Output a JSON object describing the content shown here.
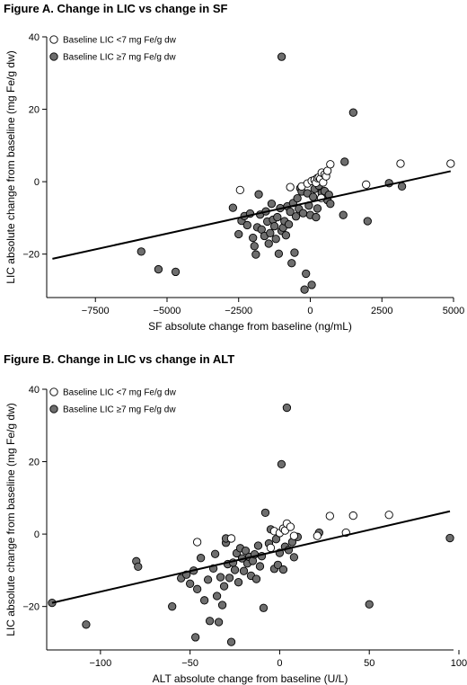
{
  "legend": {
    "open_label": "Baseline LIC <7 mg Fe/g dw",
    "filled_label": "Baseline LIC ≥7 mg Fe/g dw"
  },
  "colors": {
    "open_fill": "#ffffff",
    "filled_fill": "#6e6e6e",
    "stroke": "#000000",
    "line": "#000000"
  },
  "chart_data": [
    {
      "type": "scatter",
      "title": "Figure A. Change in LIC vs change in SF",
      "xlabel": "SF absolute change from baseline (ng/mL)",
      "ylabel": "LIC absolute change from baseline (mg Fe/g dw)",
      "xlim": [
        -9200,
        5000
      ],
      "ylim": [
        -32,
        40
      ],
      "xticks": [
        -7500,
        -5000,
        -2500,
        0,
        2500,
        5000
      ],
      "xtick_labels": [
        "−7500",
        "−5000",
        "−2500",
        "0",
        "2500",
        "5000"
      ],
      "yticks": [
        -20,
        0,
        20,
        40
      ],
      "ytick_labels": [
        "−20",
        "0",
        "20",
        "40"
      ],
      "legend_position": "top-left",
      "regression_line": {
        "x": [
          -9000,
          4900
        ],
        "y": [
          -21.3,
          2.9
        ]
      },
      "series": [
        {
          "name": "Baseline LIC <7 mg Fe/g dw",
          "marker": "open",
          "points": [
            [
              -2450,
              -2.3
            ],
            [
              -700,
              -1.5
            ],
            [
              -300,
              -1.3
            ],
            [
              -100,
              -0.5
            ],
            [
              50,
              0.2
            ],
            [
              150,
              0.5
            ],
            [
              200,
              -0.3
            ],
            [
              250,
              1.0
            ],
            [
              300,
              1.2
            ],
            [
              350,
              0.8
            ],
            [
              400,
              2.5
            ],
            [
              450,
              -0.2
            ],
            [
              500,
              2.0
            ],
            [
              550,
              1.5
            ],
            [
              600,
              3.0
            ],
            [
              700,
              4.8
            ],
            [
              1950,
              -0.8
            ],
            [
              3150,
              5.0
            ],
            [
              4900,
              5.0
            ],
            [
              380,
              -4.5
            ]
          ]
        },
        {
          "name": "Baseline LIC ≥7 mg Fe/g dw",
          "marker": "filled",
          "points": [
            [
              -5900,
              -19.3
            ],
            [
              -5300,
              -24.2
            ],
            [
              -4700,
              -24.9
            ],
            [
              -2700,
              -7.2
            ],
            [
              -2500,
              -14.5
            ],
            [
              -2400,
              -10.8
            ],
            [
              -2300,
              -9.5
            ],
            [
              -2200,
              -12.0
            ],
            [
              -2100,
              -8.8
            ],
            [
              -2000,
              -15.5
            ],
            [
              -1950,
              -17.8
            ],
            [
              -1900,
              -20.1
            ],
            [
              -1850,
              -12.6
            ],
            [
              -1800,
              -3.5
            ],
            [
              -1750,
              -9.1
            ],
            [
              -1700,
              -13.2
            ],
            [
              -1600,
              -15.0
            ],
            [
              -1550,
              -8.2
            ],
            [
              -1500,
              -11.0
            ],
            [
              -1450,
              -17.1
            ],
            [
              -1400,
              -14.2
            ],
            [
              -1350,
              -6.1
            ],
            [
              -1300,
              -10.5
            ],
            [
              -1250,
              -12.3
            ],
            [
              -1200,
              -15.8
            ],
            [
              -1150,
              -9.8
            ],
            [
              -1100,
              -19.9
            ],
            [
              -1050,
              -7.3
            ],
            [
              -1000,
              -13.6
            ],
            [
              -1000,
              34.5
            ],
            [
              -950,
              -12.7
            ],
            [
              -900,
              -10.9
            ],
            [
              -850,
              -14.8
            ],
            [
              -800,
              -6.8
            ],
            [
              -750,
              -11.8
            ],
            [
              -700,
              -8.3
            ],
            [
              -650,
              -22.5
            ],
            [
              -600,
              -5.9
            ],
            [
              -550,
              -19.6
            ],
            [
              -500,
              -9.6
            ],
            [
              -450,
              -4.6
            ],
            [
              -400,
              -7.5
            ],
            [
              -350,
              -1.8
            ],
            [
              -300,
              -2.7
            ],
            [
              -250,
              -8.7
            ],
            [
              -200,
              -29.8
            ],
            [
              -150,
              -25.4
            ],
            [
              -100,
              -3.2
            ],
            [
              -50,
              -6.6
            ],
            [
              0,
              -9.2
            ],
            [
              50,
              -28.5
            ],
            [
              100,
              -4.2
            ],
            [
              150,
              -2.0
            ],
            [
              200,
              -9.8
            ],
            [
              250,
              -7.4
            ],
            [
              300,
              -1.1
            ],
            [
              400,
              -3.1
            ],
            [
              500,
              -2.6
            ],
            [
              600,
              -5.1
            ],
            [
              650,
              -3.6
            ],
            [
              700,
              -6.1
            ],
            [
              1150,
              -9.2
            ],
            [
              1200,
              5.5
            ],
            [
              1500,
              19.1
            ],
            [
              2000,
              -10.9
            ],
            [
              3200,
              -1.3
            ],
            [
              2750,
              -0.4
            ]
          ]
        }
      ]
    },
    {
      "type": "scatter",
      "title": "Figure B. Change in LIC vs change in ALT",
      "xlabel": "ALT absolute change from baseline (U/L)",
      "ylabel": "LIC absolute change from baseline (mg Fe/g dw)",
      "xlim": [
        -130,
        97
      ],
      "ylim": [
        -32,
        40
      ],
      "xticks": [
        -100,
        -50,
        0,
        50,
        100
      ],
      "xtick_labels": [
        "−100",
        "−50",
        "0",
        "50",
        "100"
      ],
      "yticks": [
        -20,
        0,
        20,
        40
      ],
      "ytick_labels": [
        "−20",
        "0",
        "20",
        "40"
      ],
      "legend_position": "top-left",
      "regression_line": {
        "x": [
          -127,
          95
        ],
        "y": [
          -19.0,
          6.3
        ]
      },
      "series": [
        {
          "name": "Baseline LIC <7 mg Fe/g dw",
          "marker": "open",
          "points": [
            [
              -46,
              -2.2
            ],
            [
              -27,
              -1.2
            ],
            [
              -3,
              0.8
            ],
            [
              0,
              0.3
            ],
            [
              2,
              1.5
            ],
            [
              3,
              1.0
            ],
            [
              4,
              2.9
            ],
            [
              6,
              2.0
            ],
            [
              8,
              -0.5
            ],
            [
              21,
              -0.5
            ],
            [
              28,
              5.0
            ],
            [
              37,
              0.4
            ],
            [
              41,
              5.1
            ],
            [
              61,
              5.3
            ],
            [
              -5,
              -3.8
            ]
          ]
        },
        {
          "name": "Baseline LIC ≥7 mg Fe/g dw",
          "marker": "filled",
          "points": [
            [
              -127,
              -19.0
            ],
            [
              -108,
              -25.0
            ],
            [
              -80,
              -7.5
            ],
            [
              -79,
              -9.0
            ],
            [
              -60,
              -20.0
            ],
            [
              -55,
              -12.2
            ],
            [
              -52,
              -11.2
            ],
            [
              -50,
              -13.7
            ],
            [
              -48,
              -10.1
            ],
            [
              -47,
              -28.5
            ],
            [
              -46,
              -15.2
            ],
            [
              -44,
              -6.6
            ],
            [
              -42,
              -18.3
            ],
            [
              -40,
              -12.6
            ],
            [
              -39,
              -24.0
            ],
            [
              -37,
              -9.5
            ],
            [
              -36,
              -5.5
            ],
            [
              -35,
              -17.1
            ],
            [
              -34,
              -24.3
            ],
            [
              -33,
              -11.9
            ],
            [
              -32,
              -19.6
            ],
            [
              -31,
              -14.4
            ],
            [
              -30,
              -2.4
            ],
            [
              -30,
              -1.2
            ],
            [
              -29,
              -8.3
            ],
            [
              -28,
              -12.1
            ],
            [
              -27,
              -29.8
            ],
            [
              -26,
              -7.9
            ],
            [
              -25,
              -9.9
            ],
            [
              -24,
              -5.3
            ],
            [
              -23,
              -13.3
            ],
            [
              -22,
              -3.9
            ],
            [
              -21,
              -6.7
            ],
            [
              -20,
              -10.2
            ],
            [
              -19,
              -4.6
            ],
            [
              -18,
              -8.1
            ],
            [
              -17,
              -6.3
            ],
            [
              -16,
              -11.5
            ],
            [
              -15,
              -7.4
            ],
            [
              -14,
              -5.6
            ],
            [
              -13,
              -12.4
            ],
            [
              -12,
              -3.2
            ],
            [
              -11,
              -8.9
            ],
            [
              -10,
              -6.1
            ],
            [
              -9,
              -20.4
            ],
            [
              -8,
              5.9
            ],
            [
              -6,
              -2.6
            ],
            [
              -5,
              1.3
            ],
            [
              -3,
              -9.6
            ],
            [
              -2,
              -1.4
            ],
            [
              -1,
              -8.5
            ],
            [
              0,
              -5.2
            ],
            [
              1,
              19.3
            ],
            [
              2,
              -9.8
            ],
            [
              3,
              -3.5
            ],
            [
              4,
              34.9
            ],
            [
              5,
              -4.4
            ],
            [
              7,
              -2.2
            ],
            [
              8,
              -6.4
            ],
            [
              10,
              -0.8
            ],
            [
              22,
              0.4
            ],
            [
              50,
              -19.4
            ],
            [
              95,
              -1.1
            ]
          ]
        }
      ]
    }
  ]
}
